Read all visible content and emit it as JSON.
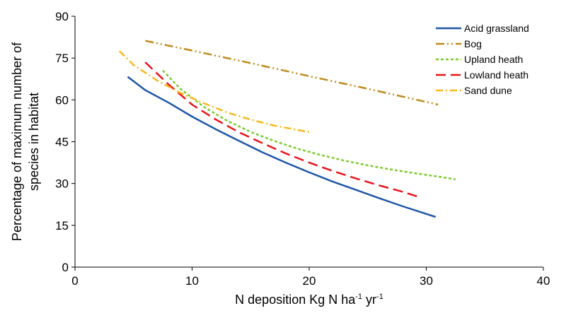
{
  "chart_data": {
    "type": "line",
    "xlabel_parts": [
      "N deposition Kg N ha",
      "-1",
      " yr",
      "-1"
    ],
    "ylabel_lines": [
      "Percentage of maximum number of",
      "species in habitat"
    ],
    "xlim": [
      0,
      40
    ],
    "ylim": [
      0,
      90
    ],
    "xticks": [
      0,
      10,
      20,
      30,
      40
    ],
    "yticks": [
      0,
      15,
      30,
      45,
      60,
      75,
      90
    ],
    "grid": false,
    "legend_position": "top-right",
    "series": [
      {
        "name": "Acid grassland",
        "color": "#1f56a8",
        "dash": "solid",
        "x": [
          4.5,
          6,
          8,
          10,
          12,
          14,
          16,
          18,
          20,
          22,
          24,
          26,
          28,
          30,
          30.8
        ],
        "y": [
          68.3,
          63.5,
          59,
          54,
          49.5,
          45.3,
          41.2,
          37.5,
          34,
          30.7,
          27.7,
          24.7,
          21.8,
          19.1,
          18
        ]
      },
      {
        "name": "Bog",
        "color": "#c08a1b",
        "dash": "dashdotdot",
        "x": [
          6,
          10,
          15,
          20,
          25,
          31
        ],
        "y": [
          81.2,
          77.7,
          73.2,
          68.5,
          64,
          58.3
        ]
      },
      {
        "name": "Upland heath",
        "color": "#7ccb2c",
        "dash": "dotted",
        "x": [
          7.5,
          9,
          11,
          13,
          15,
          17,
          19,
          21,
          23,
          25,
          27,
          29,
          31,
          32.5
        ],
        "y": [
          70.5,
          64,
          57.5,
          52.5,
          48.5,
          45.3,
          42.5,
          40.2,
          38.2,
          36.5,
          35,
          33.7,
          32.5,
          31.5
        ]
      },
      {
        "name": "Lowland heath",
        "color": "#e8141b",
        "dash": "dashed",
        "x": [
          6,
          8,
          10,
          12,
          14,
          16,
          18,
          20,
          22,
          24,
          26,
          28,
          29.5
        ],
        "y": [
          73.5,
          65.5,
          58.3,
          53,
          48.4,
          44.5,
          40.8,
          37.5,
          34.5,
          31.8,
          29.3,
          27,
          25
        ]
      },
      {
        "name": "Sand dune",
        "color": "#f7b81a",
        "dash": "dashdot",
        "x": [
          3.8,
          5,
          7,
          9,
          11,
          13,
          15,
          17,
          19,
          20.2
        ],
        "y": [
          77.5,
          72.5,
          67,
          62.5,
          58.8,
          55.5,
          52.9,
          50.8,
          49.2,
          48.3
        ]
      }
    ]
  }
}
